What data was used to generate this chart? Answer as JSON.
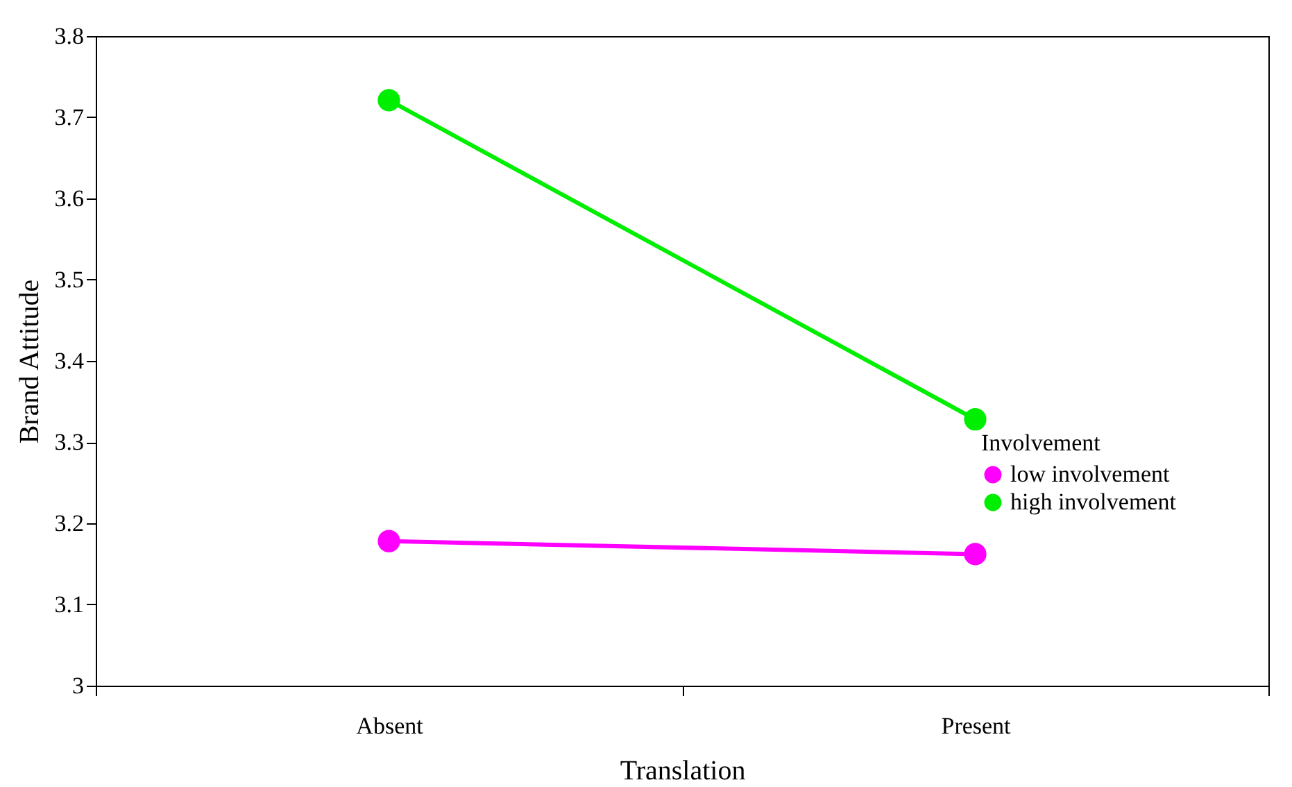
{
  "chart_data": {
    "type": "line",
    "xlabel": "Translation",
    "ylabel": "Brand Attitude",
    "legend_title": "Involvement",
    "categories": [
      "Absent",
      "Present"
    ],
    "series": [
      {
        "name": "low involvement",
        "color": "#ff00ff",
        "values": [
          3.178,
          3.162
        ]
      },
      {
        "name": "high involvement",
        "color": "#00ee00",
        "values": [
          3.721,
          3.328
        ]
      }
    ],
    "ylim": [
      3,
      3.8
    ],
    "yticks": [
      3,
      3.1,
      3.2,
      3.3,
      3.4,
      3.5,
      3.6,
      3.7,
      3.8
    ],
    "legend": "right",
    "marker": "circle",
    "grid": false
  }
}
